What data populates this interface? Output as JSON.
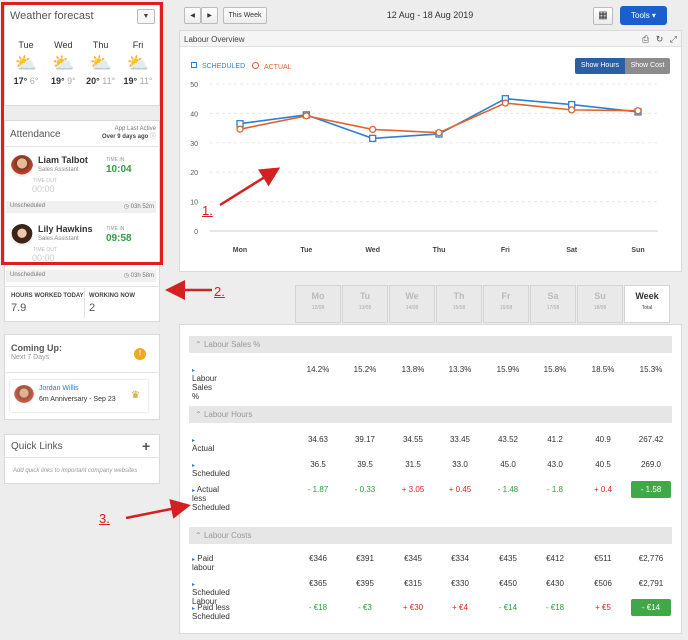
{
  "weather": {
    "title": "Weather forecast",
    "days": [
      {
        "name": "Tue",
        "hi": "17°",
        "lo": "6°",
        "icon": "partly-cloudy-icon"
      },
      {
        "name": "Wed",
        "hi": "19°",
        "lo": "9°",
        "icon": "partly-cloudy-icon"
      },
      {
        "name": "Thu",
        "hi": "20°",
        "lo": "11°",
        "icon": "partly-cloudy-icon"
      },
      {
        "name": "Fri",
        "hi": "19°",
        "lo": "11°",
        "icon": "partly-cloudy-icon"
      }
    ]
  },
  "attendance": {
    "title": "Attendance",
    "app_last_active_label": "App Last Active",
    "app_last_active_value": "Over 9 days ago",
    "time_in_label": "TIME IN",
    "time_out_label": "TIME OUT",
    "employees": [
      {
        "name": "Liam Talbot",
        "role": "Sales Assistant",
        "time_in": "10:04",
        "time_out": "00:00",
        "status": "Unscheduled",
        "duration": "03h 52m"
      },
      {
        "name": "Lily Hawkins",
        "role": "Sales Assistant",
        "time_in": "09:58",
        "time_out": "00:00",
        "status": "Unscheduled",
        "duration": "03h 58m"
      }
    ],
    "hours_worked_label": "HOURS WORKED TODAY",
    "hours_worked_value": "7.9",
    "working_now_label": "WORKING NOW",
    "working_now_value": "2"
  },
  "coming_up": {
    "title": "Coming Up:",
    "subtitle": "Next 7 Days",
    "badge": "!",
    "event_name": "Jordan Willis",
    "event_detail": "6m Anniversary - Sep 23"
  },
  "quick_links": {
    "title": "Quick Links",
    "add": "+",
    "hint": "Add quick links to important company websites"
  },
  "toolbar": {
    "prev": "◀",
    "next": "▶",
    "this_week": "This Week",
    "date_range": "12 Aug - 18 Aug 2019",
    "tools": "Tools ▾"
  },
  "labour_overview": {
    "title": "Labour Overview",
    "show_hours": "Show Hours",
    "show_cost": "Show Cost",
    "legend_scheduled": "SCHEDULED",
    "legend_actual": "ACTUAL"
  },
  "colors": {
    "scheduled": "#2f7fd1",
    "actual": "#e0632e",
    "accent": "#1b5fcf",
    "annotation": "#d42020"
  },
  "chart_data": {
    "type": "line",
    "categories": [
      "Mon",
      "Tue",
      "Wed",
      "Thu",
      "Fri",
      "Sat",
      "Sun"
    ],
    "series": [
      {
        "name": "SCHEDULED",
        "values": [
          36.5,
          39.5,
          31.5,
          33.0,
          45.0,
          43.0,
          40.5
        ]
      },
      {
        "name": "ACTUAL",
        "values": [
          34.63,
          39.17,
          34.55,
          33.45,
          43.52,
          41.2,
          40.9
        ]
      }
    ],
    "yticks": [
      0,
      10,
      20,
      30,
      40,
      50
    ],
    "ylim": [
      0,
      50
    ],
    "grid": true
  },
  "table": {
    "columns": [
      {
        "day": "Mo",
        "date": "12/08"
      },
      {
        "day": "Tu",
        "date": "13/08"
      },
      {
        "day": "We",
        "date": "14/08"
      },
      {
        "day": "Th",
        "date": "15/08"
      },
      {
        "day": "Fr",
        "date": "16/08"
      },
      {
        "day": "Sa",
        "date": "17/08"
      },
      {
        "day": "Su",
        "date": "18/08"
      },
      {
        "day": "Week",
        "date": "Total"
      }
    ],
    "sales": {
      "title": "Labour Sales %",
      "rows": [
        {
          "label": "Labour Sales %",
          "values": [
            "14.2%",
            "15.2%",
            "13.8%",
            "13.3%",
            "15.9%",
            "15.8%",
            "18.5%",
            "15.3%"
          ]
        }
      ]
    },
    "hours": {
      "title": "Labour Hours",
      "rows": [
        {
          "label": "Actual",
          "values": [
            "34.63",
            "39.17",
            "34.55",
            "33.45",
            "43.52",
            "41.2",
            "40.9",
            "267.42"
          ]
        },
        {
          "label": "Scheduled",
          "values": [
            "36.5",
            "39.5",
            "31.5",
            "33.0",
            "45.0",
            "43.0",
            "40.5",
            "269.0"
          ]
        },
        {
          "label": "Actual less Scheduled",
          "values": [
            "- 1.87",
            "- 0.33",
            "+ 3.05",
            "+ 0.45",
            "- 1.48",
            "- 1.8",
            "+ 0.4",
            "- 1.58"
          ]
        }
      ]
    },
    "costs": {
      "title": "Labour Costs",
      "rows": [
        {
          "label": "Paid labour",
          "values": [
            "€346",
            "€391",
            "€345",
            "€334",
            "€435",
            "€412",
            "€511",
            "€2,776"
          ]
        },
        {
          "label": "Scheduled Labour",
          "values": [
            "€365",
            "€395",
            "€315",
            "€330",
            "€450",
            "€430",
            "€506",
            "€2,791"
          ]
        },
        {
          "label": "Paid less Scheduled",
          "values": [
            "- €18",
            "- €3",
            "+ €30",
            "+ €4",
            "- €14",
            "- €18",
            "+ €5",
            "- €14"
          ]
        }
      ]
    }
  },
  "annotations": [
    "1.",
    "2.",
    "3."
  ]
}
